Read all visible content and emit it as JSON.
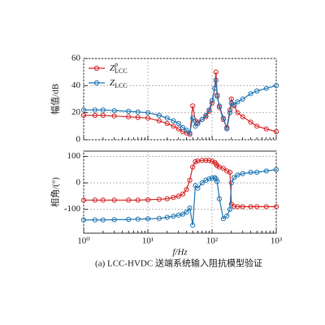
{
  "chart_data": [
    {
      "type": "line",
      "ylabel": "幅值/dB",
      "log_x": true,
      "grid": true,
      "xlim": [
        1,
        1000
      ],
      "ylim": [
        0,
        60
      ],
      "yticks": [
        0,
        20,
        40,
        60
      ],
      "legend": "upper left",
      "series": [
        {
          "name": "Z",
          "name_sup": "p",
          "name_sub": "LCC",
          "color": "#d62728",
          "x": [
            1,
            1.5,
            2,
            3,
            5,
            7,
            10,
            15,
            20,
            25,
            30,
            35,
            40,
            45,
            50,
            55,
            60,
            70,
            80,
            90,
            100,
            110,
            115,
            120,
            130,
            150,
            170,
            190,
            200,
            220,
            250,
            300,
            400,
            500,
            700,
            1000
          ],
          "values": [
            18,
            18,
            18,
            17.5,
            17,
            16.5,
            16,
            14,
            12,
            10,
            8,
            6,
            5,
            4,
            25,
            14,
            13,
            15,
            17,
            21,
            27,
            38,
            50,
            33,
            24,
            15,
            9,
            22,
            30,
            25,
            20,
            17,
            13,
            10,
            8,
            6
          ]
        },
        {
          "name": "Z",
          "name_sub": "LCC",
          "color": "#1f77b4",
          "x": [
            1,
            1.5,
            2,
            3,
            5,
            7,
            10,
            15,
            20,
            25,
            30,
            35,
            40,
            45,
            50,
            55,
            60,
            70,
            80,
            90,
            100,
            110,
            115,
            120,
            130,
            150,
            170,
            190,
            200,
            220,
            250,
            300,
            400,
            500,
            700,
            1000
          ],
          "values": [
            22,
            22,
            22,
            21.5,
            21,
            20.5,
            20,
            18,
            16,
            14,
            12,
            9,
            7,
            5,
            16,
            10,
            12,
            15,
            18,
            22,
            29,
            38,
            44,
            32,
            25,
            16,
            8,
            20,
            27,
            26,
            28,
            30,
            34,
            36,
            38,
            40
          ]
        }
      ]
    },
    {
      "type": "line",
      "ylabel": "相角/(°)",
      "xlabel": "f/Hz",
      "log_x": true,
      "grid": true,
      "xlim": [
        1,
        1000
      ],
      "ylim": [
        -190,
        120
      ],
      "yticks": [
        -100,
        0,
        100
      ],
      "xticks": [
        {
          "value": 1,
          "label": "10⁰"
        },
        {
          "value": 10,
          "label": "10¹"
        },
        {
          "value": 100,
          "label": "10²"
        },
        {
          "value": 1000,
          "label": "10³"
        }
      ],
      "series": [
        {
          "color": "#d62728",
          "x": [
            1,
            1.5,
            2,
            3,
            5,
            7,
            10,
            15,
            20,
            25,
            30,
            35,
            40,
            45,
            50,
            55,
            60,
            70,
            80,
            90,
            100,
            110,
            115,
            120,
            130,
            150,
            170,
            190,
            200,
            220,
            250,
            300,
            400,
            500,
            700,
            1000
          ],
          "values": [
            -65,
            -65,
            -65,
            -65,
            -65,
            -65,
            -64,
            -62,
            -60,
            -55,
            -50,
            -42,
            -25,
            10,
            60,
            80,
            83,
            85,
            85,
            85,
            82,
            78,
            72,
            65,
            60,
            55,
            45,
            40,
            -80,
            -88,
            -90,
            -90,
            -90,
            -90,
            -90,
            -90
          ]
        },
        {
          "color": "#1f77b4",
          "x": [
            1,
            1.5,
            2,
            3,
            5,
            7,
            10,
            15,
            20,
            25,
            30,
            35,
            40,
            45,
            50,
            55,
            60,
            70,
            80,
            90,
            100,
            110,
            115,
            120,
            130,
            150,
            170,
            190,
            200,
            220,
            250,
            300,
            400,
            500,
            700,
            1000
          ],
          "values": [
            -140,
            -140,
            -140,
            -139,
            -138,
            -137,
            -136,
            -134,
            -130,
            -126,
            -122,
            -118,
            -110,
            -95,
            -160,
            -10,
            -20,
            0,
            10,
            15,
            18,
            20,
            15,
            5,
            -60,
            -135,
            -125,
            -100,
            0,
            20,
            30,
            35,
            40,
            40,
            45,
            50
          ]
        }
      ]
    }
  ],
  "caption": "(a) LCC-HVDC 送端系统输入阻抗模型验证"
}
